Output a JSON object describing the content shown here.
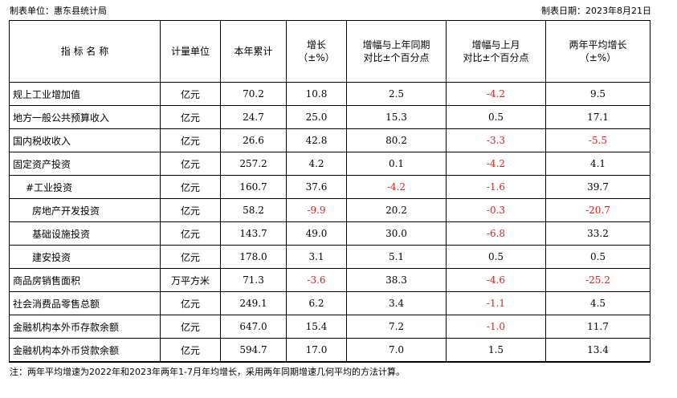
{
  "header": {
    "unit_label": "制表单位：惠东县统计局",
    "date_label": "制表日期：2023年8月21日"
  },
  "columns": [
    "指 标 名 称",
    "计量单位",
    "本年累计",
    "增长\n（±%）",
    "增幅与上年同期\n对比±个百分点",
    "增幅与上月\n对比±个百分点",
    "两年平均增长\n（±%）"
  ],
  "rows": [
    {
      "name": "规上工业增加值",
      "indent": 0,
      "unit": "亿元",
      "cumulative": "70.2",
      "growth": "10.8",
      "vs_last_year": "2.5",
      "vs_last_month": "-4.2",
      "two_year_avg": "9.5"
    },
    {
      "name": "地方一般公共预算收入",
      "indent": 0,
      "unit": "亿元",
      "cumulative": "24.7",
      "growth": "25.0",
      "vs_last_year": "15.3",
      "vs_last_month": "0.5",
      "two_year_avg": "17.1"
    },
    {
      "name": "国内税收收入",
      "indent": 0,
      "unit": "亿元",
      "cumulative": "26.6",
      "growth": "42.8",
      "vs_last_year": "80.2",
      "vs_last_month": "-3.3",
      "two_year_avg": "-5.5"
    },
    {
      "name": "固定资产投资",
      "indent": 0,
      "unit": "亿元",
      "cumulative": "257.2",
      "growth": "4.2",
      "vs_last_year": "0.1",
      "vs_last_month": "-4.2",
      "two_year_avg": "4.1"
    },
    {
      "name": "#工业投资",
      "indent": 1,
      "unit": "亿元",
      "cumulative": "160.7",
      "growth": "37.6",
      "vs_last_year": "-4.2",
      "vs_last_month": "-1.6",
      "two_year_avg": "39.7"
    },
    {
      "name": "房地产开发投资",
      "indent": 2,
      "unit": "亿元",
      "cumulative": "58.2",
      "growth": "-9.9",
      "vs_last_year": "20.2",
      "vs_last_month": "-0.3",
      "two_year_avg": "-20.7"
    },
    {
      "name": "基础设施投资",
      "indent": 2,
      "unit": "亿元",
      "cumulative": "143.7",
      "growth": "49.0",
      "vs_last_year": "30.0",
      "vs_last_month": "-6.8",
      "two_year_avg": "33.2"
    },
    {
      "name": "建安投资",
      "indent": 2,
      "unit": "亿元",
      "cumulative": "178.0",
      "growth": "3.1",
      "vs_last_year": "5.1",
      "vs_last_month": "0.5",
      "two_year_avg": "0.5"
    },
    {
      "name": "商品房销售面积",
      "indent": 0,
      "unit": "万平方米",
      "cumulative": "71.3",
      "growth": "-3.6",
      "vs_last_year": "38.3",
      "vs_last_month": "-4.6",
      "two_year_avg": "-25.2"
    },
    {
      "name": "社会消费品零售总额",
      "indent": 0,
      "unit": "亿元",
      "cumulative": "249.1",
      "growth": "6.2",
      "vs_last_year": "3.4",
      "vs_last_month": "-1.1",
      "two_year_avg": "4.5"
    },
    {
      "name": "金融机构本外币存款余额",
      "indent": 0,
      "unit": "亿元",
      "cumulative": "647.0",
      "growth": "15.4",
      "vs_last_year": "7.2",
      "vs_last_month": "-1.0",
      "two_year_avg": "11.7"
    },
    {
      "name": "金融机构本外币贷款余额",
      "indent": 0,
      "unit": "亿元",
      "cumulative": "594.7",
      "growth": "17.0",
      "vs_last_year": "7.0",
      "vs_last_month": "1.5",
      "two_year_avg": "13.4"
    }
  ],
  "note": "注：两年平均增速为2022年和2023年两年1-7月年均增长，采用两年同期增速几何平均的方法计算。",
  "colors": {
    "negative": "#e0201c",
    "text": "#000000"
  }
}
